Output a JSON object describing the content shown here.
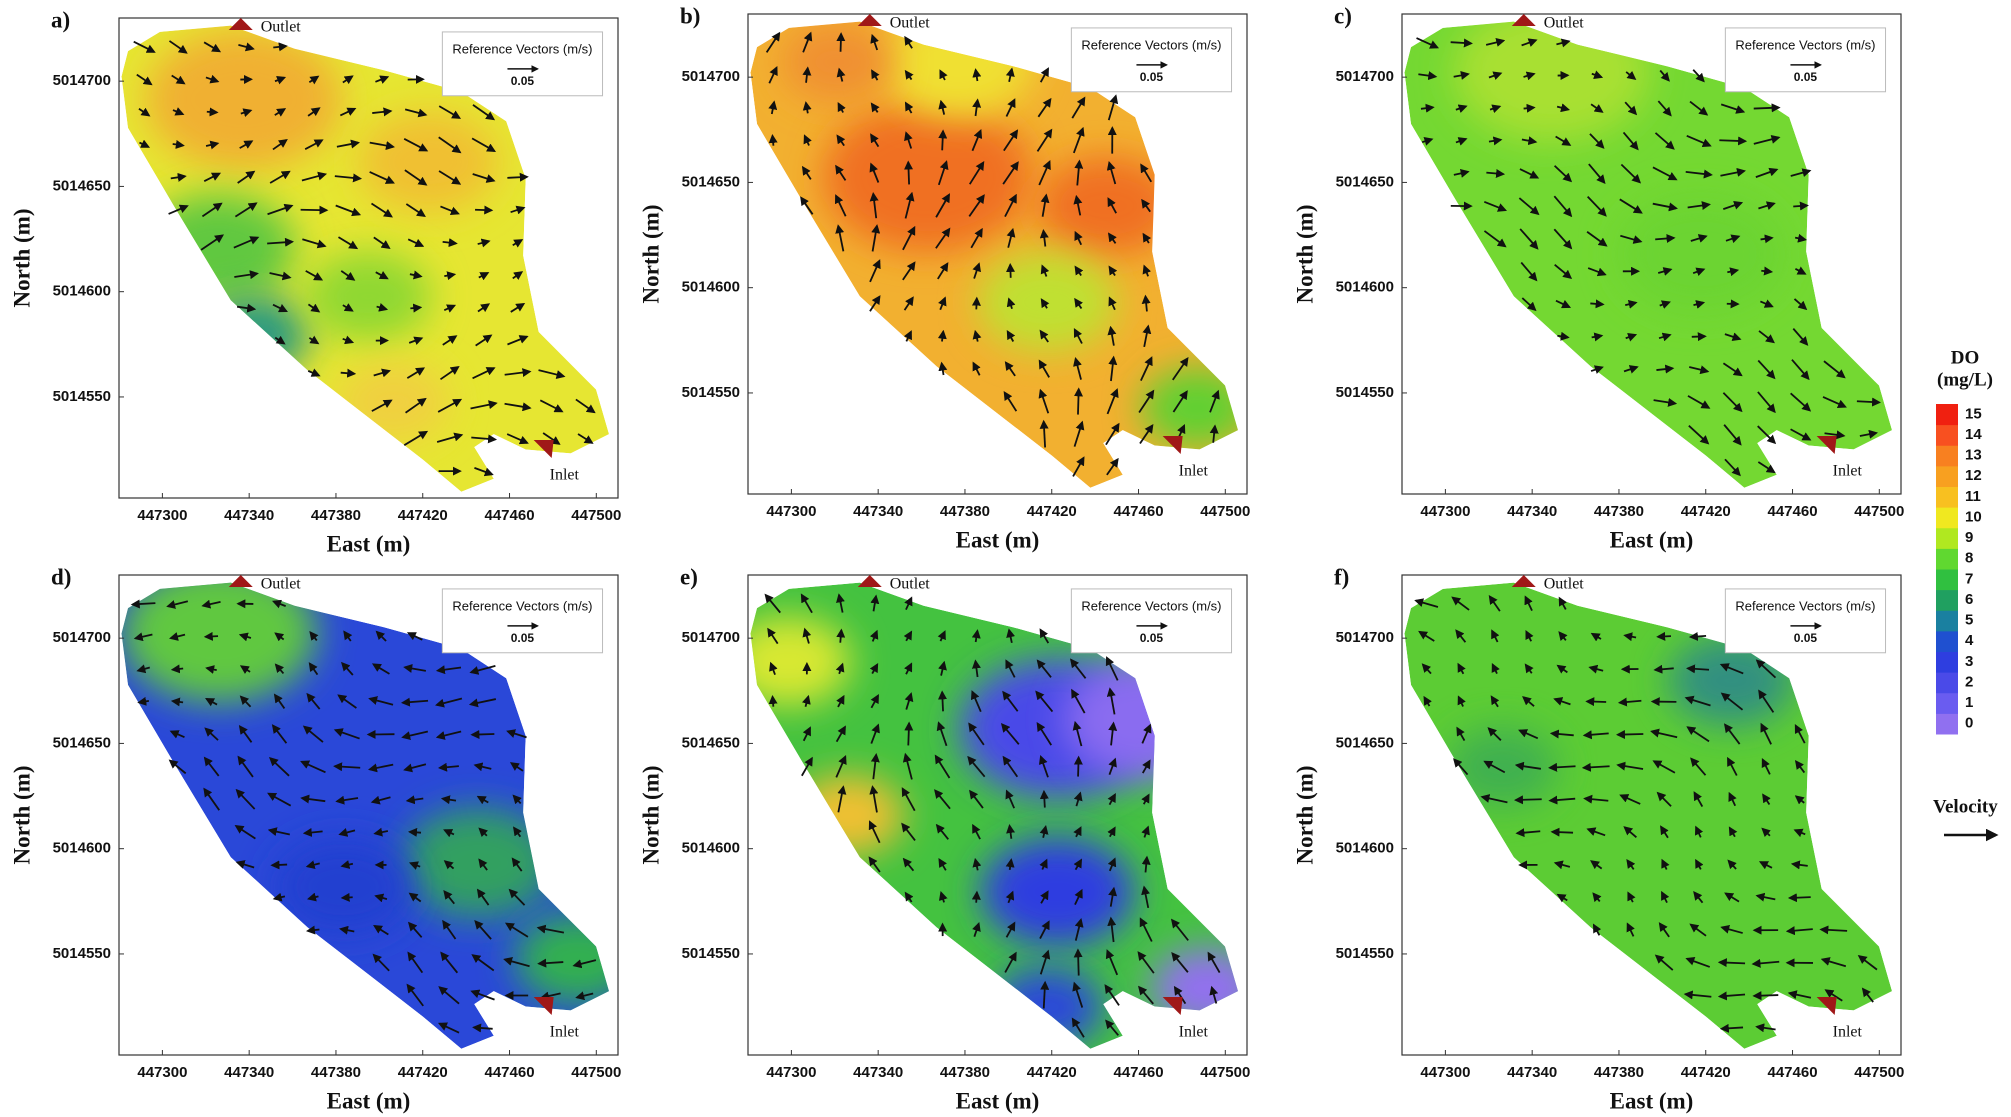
{
  "chart_data": [
    {
      "type": "contour",
      "label": "a)",
      "xlabel": "East (m)",
      "ylabel": "North (m)",
      "xlim": [
        447280,
        447510
      ],
      "ylim": [
        5014502,
        5014730
      ],
      "xticks": [
        447300,
        447340,
        447380,
        447420,
        447460,
        447500
      ],
      "yticks": [
        5014550,
        5014600,
        5014650,
        5014700
      ],
      "outlet_label": "Outlet",
      "inlet_label": "Inlet",
      "reference_title": "Reference Vectors (m/s)",
      "reference_value": 0.05,
      "color": "#e6e632"
    },
    {
      "type": "contour",
      "label": "b)",
      "xlabel": "East (m)",
      "ylabel": "North (m)",
      "xlim": [
        447280,
        447510
      ],
      "ylim": [
        5014502,
        5014730
      ],
      "xticks": [
        447300,
        447340,
        447380,
        447420,
        447460,
        447500
      ],
      "yticks": [
        5014550,
        5014600,
        5014650,
        5014700
      ],
      "outlet_label": "Outlet",
      "inlet_label": "Inlet",
      "reference_title": "Reference Vectors (m/s)",
      "reference_value": 0.05,
      "color": "#f2b030"
    },
    {
      "type": "contour",
      "label": "c)",
      "xlabel": "East (m)",
      "ylabel": "North (m)",
      "xlim": [
        447280,
        447510
      ],
      "ylim": [
        5014502,
        5014730
      ],
      "xticks": [
        447300,
        447340,
        447380,
        447420,
        447460,
        447500
      ],
      "yticks": [
        5014550,
        5014600,
        5014650,
        5014700
      ],
      "outlet_label": "Outlet",
      "inlet_label": "Inlet",
      "reference_title": "Reference Vectors (m/s)",
      "reference_value": 0.05,
      "color": "#74d832"
    },
    {
      "type": "contour",
      "label": "d)",
      "xlabel": "East (m)",
      "ylabel": "North (m)",
      "xlim": [
        447280,
        447510
      ],
      "ylim": [
        5014502,
        5014730
      ],
      "xticks": [
        447300,
        447340,
        447380,
        447420,
        447460,
        447500
      ],
      "yticks": [
        5014550,
        5014600,
        5014650,
        5014700
      ],
      "outlet_label": "Outlet",
      "inlet_label": "Inlet",
      "reference_title": "Reference Vectors (m/s)",
      "reference_value": 0.05,
      "color": "#2a48d8"
    },
    {
      "type": "contour",
      "label": "e)",
      "xlabel": "East (m)",
      "ylabel": "North (m)",
      "xlim": [
        447280,
        447510
      ],
      "ylim": [
        5014502,
        5014730
      ],
      "xticks": [
        447300,
        447340,
        447380,
        447420,
        447460,
        447500
      ],
      "yticks": [
        5014550,
        5014600,
        5014650,
        5014700
      ],
      "outlet_label": "Outlet",
      "inlet_label": "Inlet",
      "reference_title": "Reference Vectors (m/s)",
      "reference_value": 0.05,
      "color": "#44c240"
    },
    {
      "type": "contour",
      "label": "f)",
      "xlabel": "East (m)",
      "ylabel": "North (m)",
      "xlim": [
        447280,
        447510
      ],
      "ylim": [
        5014502,
        5014730
      ],
      "xticks": [
        447300,
        447340,
        447380,
        447420,
        447460,
        447500
      ],
      "yticks": [
        5014550,
        5014600,
        5014650,
        5014700
      ],
      "outlet_label": "Outlet",
      "inlet_label": "Inlet",
      "reference_title": "Reference Vectors (m/s)",
      "reference_value": 0.05,
      "color": "#5ccc34"
    }
  ],
  "colorbar": {
    "title": "DO",
    "unit": "(mg/L)",
    "ticks": [
      0,
      1,
      2,
      3,
      4,
      5,
      6,
      7,
      8,
      9,
      10,
      11,
      12,
      13,
      14,
      15
    ],
    "colors": [
      "#9070f0",
      "#6a5cf0",
      "#4a4ae8",
      "#2e3ee0",
      "#1f50d0",
      "#1a80a0",
      "#20a060",
      "#30c040",
      "#60d830",
      "#b0e820",
      "#f0e820",
      "#f8c020",
      "#f8a020",
      "#f88020",
      "#f85020",
      "#f02010"
    ]
  },
  "velocity_label": "Velocity"
}
